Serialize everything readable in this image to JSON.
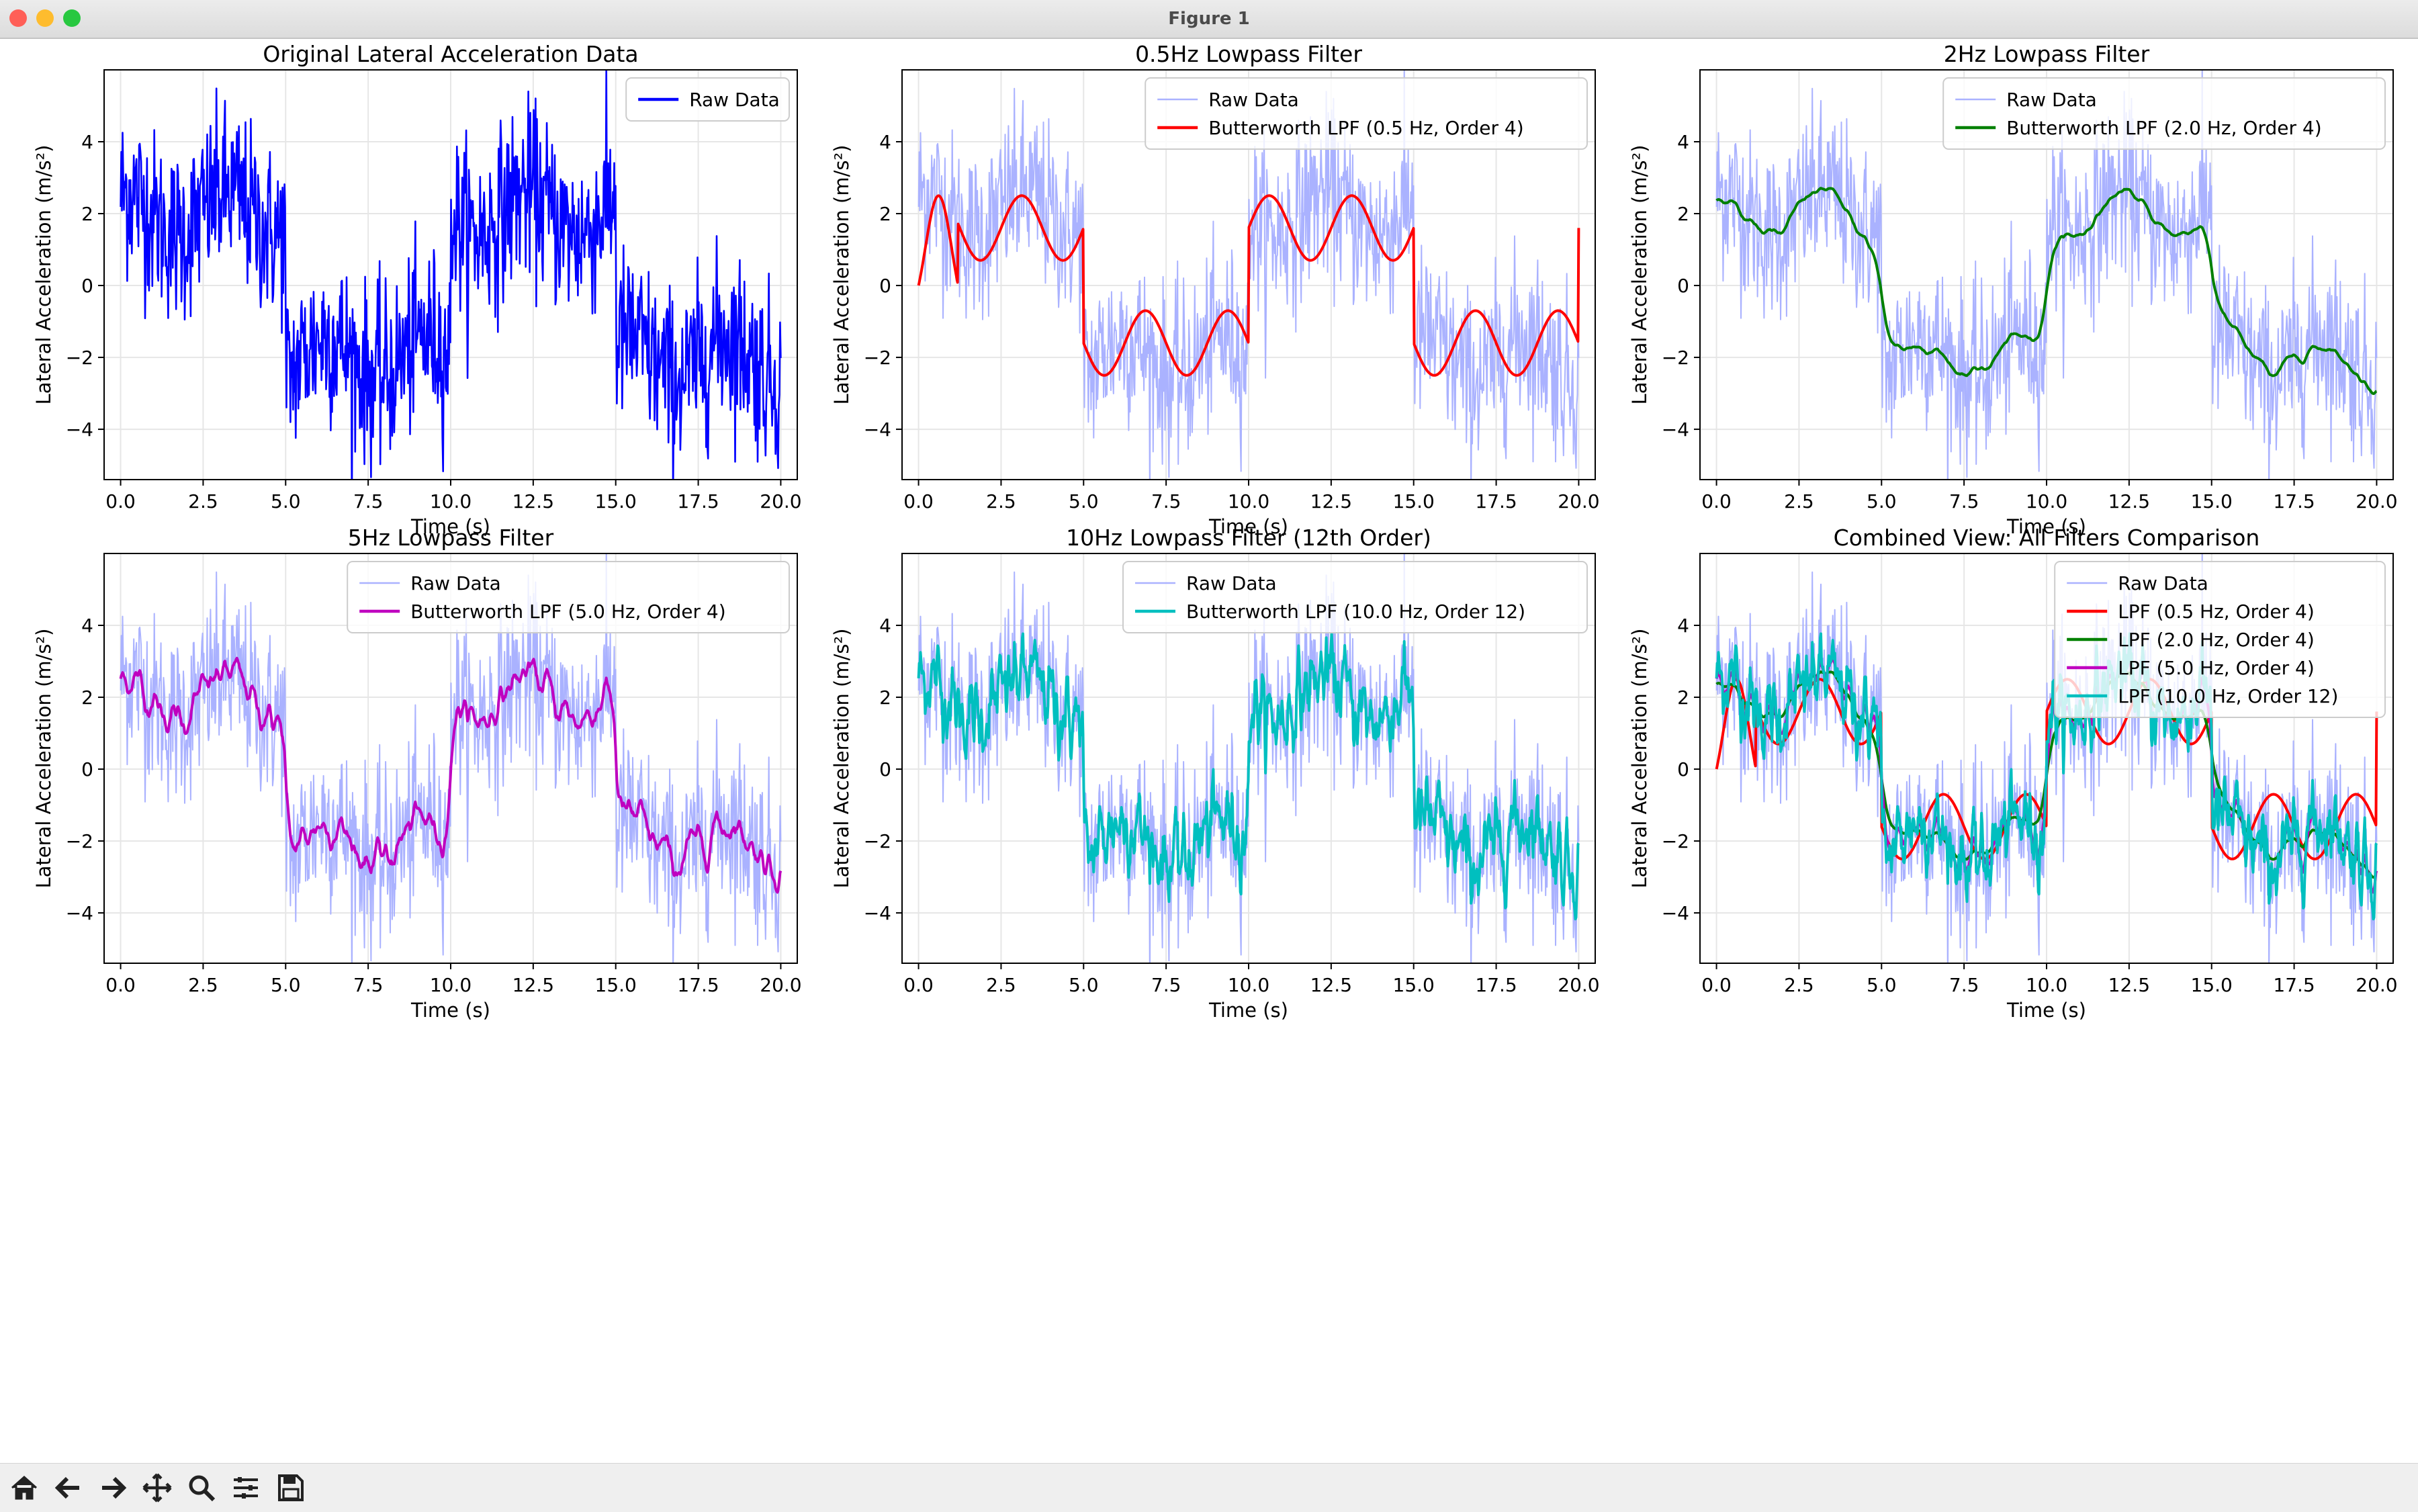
{
  "window": {
    "title": "Figure 1"
  },
  "toolbar": {
    "icons": [
      "home-icon",
      "back-arrow-icon",
      "forward-arrow-icon",
      "pan-move-icon",
      "zoom-magnifier-icon",
      "configure-subplots-icon",
      "save-floppy-icon"
    ]
  },
  "colors": {
    "raw": "#0000ff",
    "raw_faded": "#aab2ff",
    "red": "#ff0000",
    "green": "#008000",
    "magenta": "#bf00bf",
    "cyan": "#00bfbf",
    "grid": "#e6e6e6"
  },
  "chart_data": [
    {
      "type": "line",
      "title": "Original Lateral Acceleration Data",
      "xlabel": "Time (s)",
      "ylabel": "Lateral Acceleration (m/s²)",
      "xlim": [
        -0.5,
        20.5
      ],
      "ylim": [
        -5.4,
        6.0
      ],
      "xticks": [
        "0.0",
        "2.5",
        "5.0",
        "7.5",
        "10.0",
        "12.5",
        "15.0",
        "17.5",
        "20.0"
      ],
      "yticks": [
        "4",
        "2",
        "0",
        "−2",
        "−4"
      ],
      "grid": true,
      "legend": "top-right",
      "series": [
        {
          "name": "Raw Data",
          "signal": "raw",
          "color": "#0000ff",
          "faded": false
        }
      ]
    },
    {
      "type": "line",
      "title": "0.5Hz Lowpass Filter",
      "xlabel": "Time (s)",
      "ylabel": "Lateral Acceleration (m/s²)",
      "xlim": [
        -0.5,
        20.5
      ],
      "ylim": [
        -5.4,
        6.0
      ],
      "xticks": [
        "0.0",
        "2.5",
        "5.0",
        "7.5",
        "10.0",
        "12.5",
        "15.0",
        "17.5",
        "20.0"
      ],
      "yticks": [
        "4",
        "2",
        "0",
        "−2",
        "−4"
      ],
      "grid": true,
      "legend": "top-right",
      "series": [
        {
          "name": "Raw Data",
          "signal": "raw",
          "color": "#aab2ff",
          "faded": true
        },
        {
          "name": "Butterworth LPF (0.5 Hz, Order 4)",
          "signal": "f05",
          "color": "#ff0000",
          "faded": false
        }
      ]
    },
    {
      "type": "line",
      "title": "2Hz Lowpass Filter",
      "xlabel": "Time (s)",
      "ylabel": "Lateral Acceleration (m/s²)",
      "xlim": [
        -0.5,
        20.5
      ],
      "ylim": [
        -5.4,
        6.0
      ],
      "xticks": [
        "0.0",
        "2.5",
        "5.0",
        "7.5",
        "10.0",
        "12.5",
        "15.0",
        "17.5",
        "20.0"
      ],
      "yticks": [
        "4",
        "2",
        "0",
        "−2",
        "−4"
      ],
      "grid": true,
      "legend": "top-right",
      "series": [
        {
          "name": "Raw Data",
          "signal": "raw",
          "color": "#aab2ff",
          "faded": true
        },
        {
          "name": "Butterworth LPF (2.0 Hz, Order 4)",
          "signal": "f2",
          "color": "#008000",
          "faded": false
        }
      ]
    },
    {
      "type": "line",
      "title": "5Hz Lowpass Filter",
      "xlabel": "Time (s)",
      "ylabel": "Lateral Acceleration (m/s²)",
      "xlim": [
        -0.5,
        20.5
      ],
      "ylim": [
        -5.4,
        6.0
      ],
      "xticks": [
        "0.0",
        "2.5",
        "5.0",
        "7.5",
        "10.0",
        "12.5",
        "15.0",
        "17.5",
        "20.0"
      ],
      "yticks": [
        "4",
        "2",
        "0",
        "−2",
        "−4"
      ],
      "grid": true,
      "legend": "top-right",
      "series": [
        {
          "name": "Raw Data",
          "signal": "raw",
          "color": "#aab2ff",
          "faded": true
        },
        {
          "name": "Butterworth LPF (5.0 Hz, Order 4)",
          "signal": "f5",
          "color": "#bf00bf",
          "faded": false
        }
      ]
    },
    {
      "type": "line",
      "title": "10Hz Lowpass Filter (12th Order)",
      "xlabel": "Time (s)",
      "ylabel": "Lateral Acceleration (m/s²)",
      "xlim": [
        -0.5,
        20.5
      ],
      "ylim": [
        -5.4,
        6.0
      ],
      "xticks": [
        "0.0",
        "2.5",
        "5.0",
        "7.5",
        "10.0",
        "12.5",
        "15.0",
        "17.5",
        "20.0"
      ],
      "yticks": [
        "4",
        "2",
        "0",
        "−2",
        "−4"
      ],
      "grid": true,
      "legend": "top-right",
      "series": [
        {
          "name": "Raw Data",
          "signal": "raw",
          "color": "#aab2ff",
          "faded": true
        },
        {
          "name": "Butterworth LPF (10.0 Hz, Order 12)",
          "signal": "f10",
          "color": "#00bfbf",
          "faded": false
        }
      ]
    },
    {
      "type": "line",
      "title": "Combined View: All Filters Comparison",
      "xlabel": "Time (s)",
      "ylabel": "Lateral Acceleration (m/s²)",
      "xlim": [
        -0.5,
        20.5
      ],
      "ylim": [
        -5.4,
        6.0
      ],
      "xticks": [
        "0.0",
        "2.5",
        "5.0",
        "7.5",
        "10.0",
        "12.5",
        "15.0",
        "17.5",
        "20.0"
      ],
      "yticks": [
        "4",
        "2",
        "0",
        "−2",
        "−4"
      ],
      "grid": true,
      "legend": "top-right",
      "series": [
        {
          "name": "Raw Data",
          "signal": "raw",
          "color": "#aab2ff",
          "faded": true
        },
        {
          "name": "LPF (0.5 Hz, Order 4)",
          "signal": "f05",
          "color": "#ff0000",
          "faded": false
        },
        {
          "name": "LPF (2.0 Hz, Order 4)",
          "signal": "f2",
          "color": "#008000",
          "faded": false
        },
        {
          "name": "LPF (5.0 Hz, Order 4)",
          "signal": "f5",
          "color": "#bf00bf",
          "faded": false
        },
        {
          "name": "LPF (10.0 Hz, Order 12)",
          "signal": "f10",
          "color": "#00bfbf",
          "faded": false
        }
      ]
    }
  ]
}
